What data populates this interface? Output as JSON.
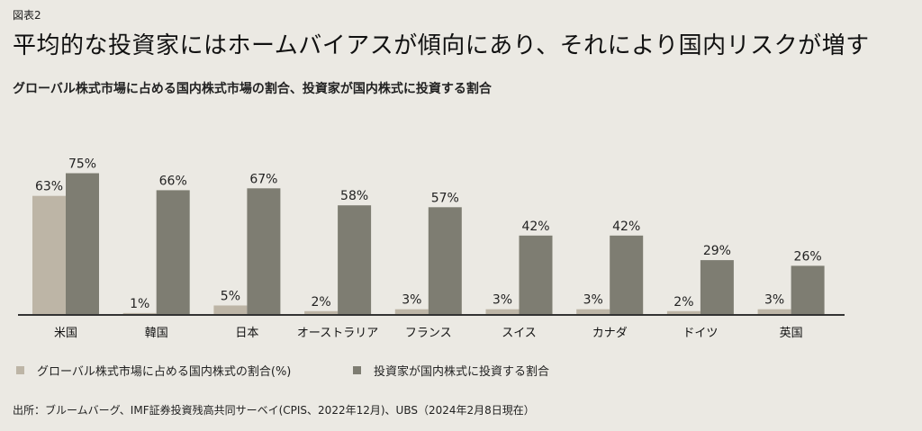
{
  "figure_label": "図表2",
  "title": "平均的な投資家にはホームバイアスが傾向にあり、それにより国内リスクが増す",
  "subtitle": "グローバル株式市場に占める国内株式市場の割合、投資家が国内株式に投資する割合",
  "source": "出所：ブルームバーグ、IMF証券投資残高共同サーベイ(CPIS、2022年12月)、UBS（2024年2月8日現在）",
  "colors": {
    "series1": "#bdb5a6",
    "series2": "#7e7d72",
    "axis": "#333333",
    "background": "#ebe9e3"
  },
  "chart_data": {
    "type": "bar",
    "categories": [
      "米国",
      "韓国",
      "日本",
      "オーストラリア",
      "フランス",
      "スイス",
      "カナダ",
      "ドイツ",
      "英国"
    ],
    "series": [
      {
        "name": "グローバル株式市場に占める国内株式の割合(%)",
        "values": [
          63,
          1,
          5,
          2,
          3,
          3,
          3,
          2,
          3
        ]
      },
      {
        "name": "投資家が国内株式に投資する割合",
        "values": [
          75,
          66,
          67,
          58,
          57,
          42,
          42,
          29,
          26
        ]
      }
    ],
    "value_suffix": "%",
    "ylim": [
      0,
      80
    ],
    "grid": false,
    "legend_position": "bottom"
  }
}
